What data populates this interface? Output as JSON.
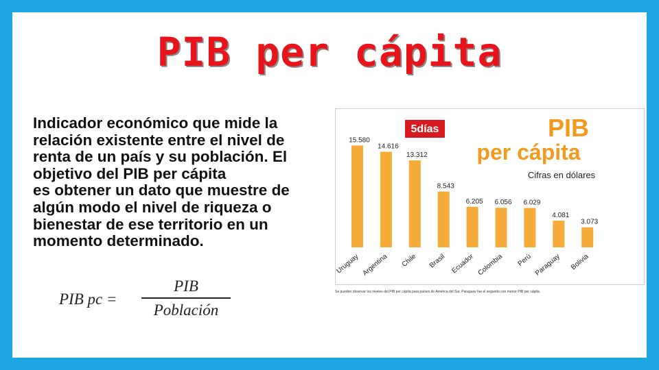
{
  "slide": {
    "title": "PIB per cápita",
    "description_lines": [
      "Indicador económico que mide la",
      "relación existente entre el nivel de",
      "renta de un país y su población.  El",
      "objetivo del PIB per cápita",
      "es obtener un dato que muestre de",
      "algún modo el nivel de riqueza o",
      "bienestar de ese territorio en un",
      "momento determinado."
    ],
    "formula": {
      "lhs": "PIB pc =",
      "numerator": "PIB",
      "denominator": "Población"
    },
    "caption": "Se pueden observar los niveles del PIB per cápita para países de América del Sur. Paraguay fue el segundo con menor PIB per cápita."
  },
  "colors": {
    "frame": "#1ea6e4",
    "title": "#e8141c",
    "bar": "#f5ac3a",
    "chart_title": "#f39a1e",
    "logo_bg": "#d71920"
  },
  "chart_data": {
    "type": "bar",
    "logo": "5días",
    "title": "PIB",
    "subtitle": "per cápita",
    "note": "Cifras en dólares",
    "categories": [
      "Uruguay",
      "Argentina",
      "Chile",
      "Brasil",
      "Ecuador",
      "Colombia",
      "Perú",
      "Paraguay",
      "Bolivia"
    ],
    "values": [
      15580,
      14616,
      13312,
      8543,
      6205,
      6056,
      6029,
      4081,
      3073
    ],
    "value_labels": [
      "15.580",
      "14.616",
      "13.312",
      "8.543",
      "6.205",
      "6.056",
      "6.029",
      "4.081",
      "3.073"
    ],
    "ylim": [
      0,
      20000
    ],
    "grid": false,
    "legend": "none"
  }
}
